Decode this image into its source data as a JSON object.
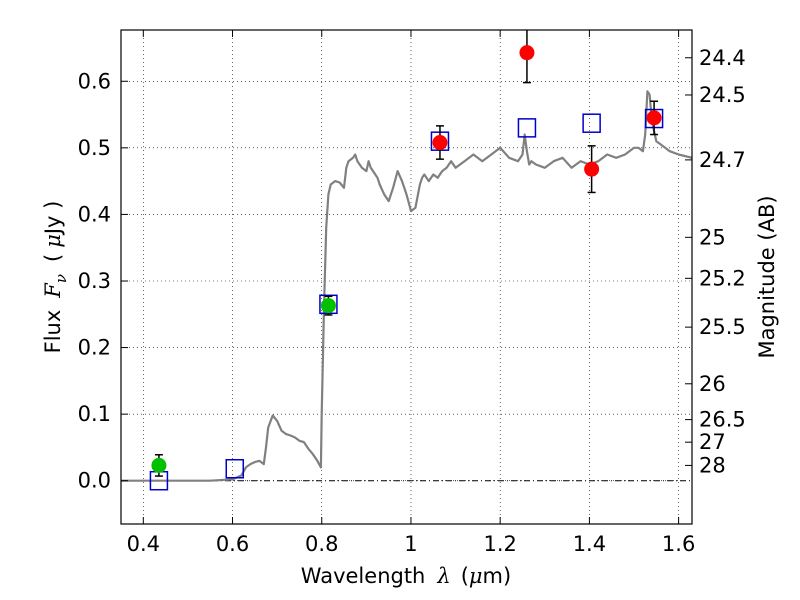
{
  "chart_data": {
    "type": "scatter",
    "xlabel_text": "Wavelength",
    "xlabel_math": "λ",
    "xlabel_unit_open": "(",
    "xlabel_unit_mu": "μ",
    "xlabel_unit_rest": "m)",
    "ylabel_text": "Flux",
    "ylabel_math_main": "F",
    "ylabel_math_sub": "ν",
    "ylabel_unit_open": "(",
    "ylabel_unit_mu": "μ",
    "ylabel_unit_rest": "Jy )",
    "y2label": "Magnitude (AB)",
    "xlim": [
      0.35,
      1.63
    ],
    "ylim": [
      -0.065,
      0.677
    ],
    "x_ticks": [
      0.4,
      0.6,
      0.8,
      1.0,
      1.2,
      1.4,
      1.6
    ],
    "x_tick_labels": [
      "0.4",
      "0.6",
      "0.8",
      "1",
      "1.2",
      "1.4",
      "1.6"
    ],
    "y_ticks": [
      0.0,
      0.1,
      0.2,
      0.3,
      0.4,
      0.5,
      0.6
    ],
    "y_tick_labels": [
      "0.0",
      "0.1",
      "0.2",
      "0.3",
      "0.4",
      "0.5",
      "0.6"
    ],
    "y2_ticks": [
      {
        "label": "24.4",
        "flux": 0.6353
      },
      {
        "label": "24.5",
        "flux": 0.5794
      },
      {
        "label": "24.7",
        "flux": 0.4819
      },
      {
        "label": "25",
        "flux": 0.3656
      },
      {
        "label": "25.2",
        "flux": 0.304
      },
      {
        "label": "25.5",
        "flux": 0.2307
      },
      {
        "label": "26",
        "flux": 0.1456
      },
      {
        "label": "26.5",
        "flux": 0.0918
      },
      {
        "label": "27",
        "flux": 0.0579
      },
      {
        "label": "28",
        "flux": 0.023
      }
    ],
    "grid": true,
    "colors": {
      "model": "#808080",
      "observed_red": "#ff0000",
      "observed_green": "#00c000",
      "model_box": "#0000cc",
      "errorbar": "#000000"
    },
    "model_sed": {
      "x": [
        0.35,
        0.45,
        0.55,
        0.6,
        0.62,
        0.63,
        0.64,
        0.65,
        0.66,
        0.67,
        0.675,
        0.68,
        0.69,
        0.7,
        0.71,
        0.72,
        0.73,
        0.74,
        0.75,
        0.76,
        0.77,
        0.78,
        0.79,
        0.798,
        0.8,
        0.805,
        0.81,
        0.815,
        0.82,
        0.83,
        0.84,
        0.85,
        0.855,
        0.86,
        0.87,
        0.875,
        0.88,
        0.89,
        0.9,
        0.905,
        0.91,
        0.92,
        0.925,
        0.93,
        0.94,
        0.95,
        0.96,
        0.97,
        0.98,
        0.99,
        1.0,
        1.01,
        1.02,
        1.025,
        1.03,
        1.04,
        1.05,
        1.06,
        1.07,
        1.08,
        1.09,
        1.1,
        1.12,
        1.14,
        1.16,
        1.18,
        1.2,
        1.22,
        1.24,
        1.25,
        1.255,
        1.26,
        1.265,
        1.27,
        1.28,
        1.3,
        1.32,
        1.34,
        1.36,
        1.38,
        1.4,
        1.42,
        1.44,
        1.46,
        1.48,
        1.5,
        1.51,
        1.52,
        1.525,
        1.53,
        1.535,
        1.54,
        1.55,
        1.56,
        1.57,
        1.58,
        1.6,
        1.63
      ],
      "y": [
        0.0,
        0.0,
        0.0,
        0.002,
        0.008,
        0.02,
        0.025,
        0.028,
        0.03,
        0.025,
        0.05,
        0.08,
        0.098,
        0.09,
        0.075,
        0.07,
        0.068,
        0.065,
        0.06,
        0.058,
        0.048,
        0.04,
        0.03,
        0.02,
        0.1,
        0.26,
        0.38,
        0.43,
        0.445,
        0.45,
        0.448,
        0.44,
        0.47,
        0.48,
        0.485,
        0.49,
        0.48,
        0.47,
        0.465,
        0.48,
        0.47,
        0.46,
        0.455,
        0.445,
        0.43,
        0.42,
        0.44,
        0.465,
        0.45,
        0.43,
        0.405,
        0.41,
        0.445,
        0.455,
        0.46,
        0.45,
        0.46,
        0.455,
        0.465,
        0.47,
        0.48,
        0.47,
        0.48,
        0.49,
        0.48,
        0.49,
        0.5,
        0.485,
        0.48,
        0.49,
        0.52,
        0.495,
        0.475,
        0.48,
        0.475,
        0.47,
        0.48,
        0.485,
        0.47,
        0.48,
        0.475,
        0.48,
        0.49,
        0.485,
        0.49,
        0.5,
        0.5,
        0.495,
        0.52,
        0.585,
        0.58,
        0.54,
        0.51,
        0.505,
        0.5,
        0.495,
        0.49,
        0.485
      ]
    },
    "observed": [
      {
        "x": 0.435,
        "y": 0.023,
        "err": 0.016,
        "color": "green"
      },
      {
        "x": 0.815,
        "y": 0.263,
        "err": 0.014,
        "color": "green"
      },
      {
        "x": 1.065,
        "y": 0.508,
        "err": 0.025,
        "color": "red"
      },
      {
        "x": 1.26,
        "y": 0.643,
        "err": 0.045,
        "color": "red"
      },
      {
        "x": 1.405,
        "y": 0.468,
        "err": 0.035,
        "color": "red"
      },
      {
        "x": 1.545,
        "y": 0.545,
        "err": 0.025,
        "color": "red"
      }
    ],
    "model_points": [
      {
        "x": 0.435,
        "y": 0.0
      },
      {
        "x": 0.605,
        "y": 0.018
      },
      {
        "x": 0.815,
        "y": 0.265
      },
      {
        "x": 1.065,
        "y": 0.51
      },
      {
        "x": 1.26,
        "y": 0.53
      },
      {
        "x": 1.405,
        "y": 0.537
      },
      {
        "x": 1.545,
        "y": 0.544
      }
    ]
  }
}
